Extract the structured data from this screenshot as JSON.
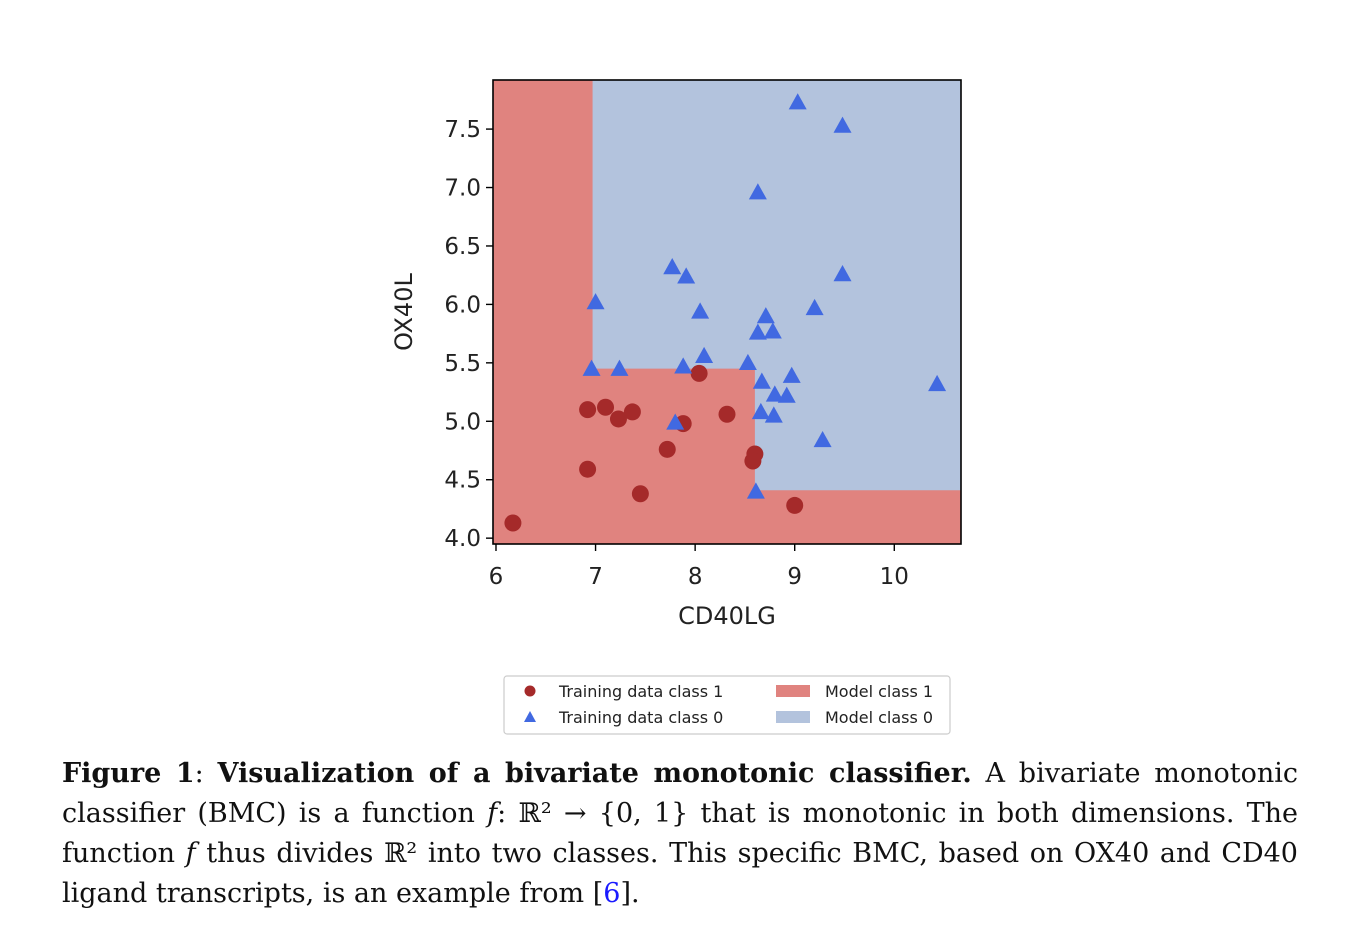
{
  "chart_data": {
    "type": "scatter",
    "xlabel": "CD40LG",
    "ylabel": "OX40L",
    "xlim": [
      5.97,
      10.67
    ],
    "ylim": [
      3.95,
      7.92
    ],
    "xticks": [
      6,
      7,
      8,
      9,
      10
    ],
    "yticks": [
      4.0,
      4.5,
      5.0,
      5.5,
      6.0,
      6.5,
      7.0,
      7.5
    ],
    "xtick_labels": [
      "6",
      "7",
      "8",
      "9",
      "10"
    ],
    "ytick_labels": [
      "4.0",
      "4.5",
      "5.0",
      "5.5",
      "6.0",
      "6.5",
      "7.0",
      "7.5"
    ],
    "regions": {
      "class1_boundary": [
        [
          5.97,
          7.92
        ],
        [
          6.97,
          7.92
        ],
        [
          6.97,
          5.45
        ],
        [
          8.6,
          5.45
        ],
        [
          8.6,
          4.41
        ],
        [
          10.67,
          4.41
        ],
        [
          10.67,
          3.95
        ],
        [
          5.97,
          3.95
        ]
      ]
    },
    "series": [
      {
        "name": "Training data class 1",
        "marker": "circle",
        "color": "#a52a2a",
        "points": [
          [
            6.17,
            4.13
          ],
          [
            6.92,
            5.1
          ],
          [
            7.1,
            5.12
          ],
          [
            7.23,
            5.02
          ],
          [
            7.37,
            5.08
          ],
          [
            6.92,
            4.59
          ],
          [
            7.45,
            4.38
          ],
          [
            7.72,
            4.76
          ],
          [
            7.88,
            4.98
          ],
          [
            8.04,
            5.41
          ],
          [
            8.32,
            5.06
          ],
          [
            8.6,
            4.72
          ],
          [
            8.58,
            4.66
          ],
          [
            9.0,
            4.28
          ]
        ]
      },
      {
        "name": "Training data class 0",
        "marker": "triangle",
        "color": "#4169e1",
        "points": [
          [
            9.03,
            7.73
          ],
          [
            9.48,
            7.53
          ],
          [
            8.63,
            6.96
          ],
          [
            7.77,
            6.32
          ],
          [
            7.91,
            6.24
          ],
          [
            9.48,
            6.26
          ],
          [
            7.0,
            6.02
          ],
          [
            8.05,
            5.94
          ],
          [
            9.2,
            5.97
          ],
          [
            8.71,
            5.9
          ],
          [
            8.78,
            5.77
          ],
          [
            8.63,
            5.76
          ],
          [
            6.96,
            5.45
          ],
          [
            7.24,
            5.45
          ],
          [
            7.88,
            5.47
          ],
          [
            8.09,
            5.56
          ],
          [
            8.53,
            5.5
          ],
          [
            8.67,
            5.34
          ],
          [
            8.97,
            5.39
          ],
          [
            8.8,
            5.23
          ],
          [
            8.92,
            5.22
          ],
          [
            8.66,
            5.08
          ],
          [
            8.79,
            5.05
          ],
          [
            7.8,
            4.99
          ],
          [
            9.28,
            4.84
          ],
          [
            10.43,
            5.32
          ],
          [
            8.61,
            4.4
          ]
        ]
      }
    ],
    "legend": {
      "placement": "bottom-center",
      "items": [
        {
          "label": "Training data class 1",
          "type": "circle",
          "color": "#a52a2a"
        },
        {
          "label": "Model class 1",
          "type": "patch",
          "color": "#e0837f"
        },
        {
          "label": "Training data class 0",
          "type": "triangle",
          "color": "#4169e1"
        },
        {
          "label": "Model class 0",
          "type": "patch",
          "color": "#b3c3dd"
        }
      ]
    }
  },
  "caption": {
    "label": "Figure 1",
    "colon": ": ",
    "title": "Visualization of a bivariate monotonic classifier.",
    "body_1": " A bivariate monotonic classifier (BMC) is a function ",
    "f_symbol": "f",
    "mapping": ": ℝ² → {0, 1}",
    "body_2": " that is monotonic in both dimensions. The function ",
    "body_3": " thus divides ℝ² into two classes. This specific BMC, based on OX40 and CD40 ligand transcripts, is an example from ",
    "ref_open": "[",
    "ref": "6",
    "ref_close": "].",
    "f_symbol_2": "f"
  }
}
